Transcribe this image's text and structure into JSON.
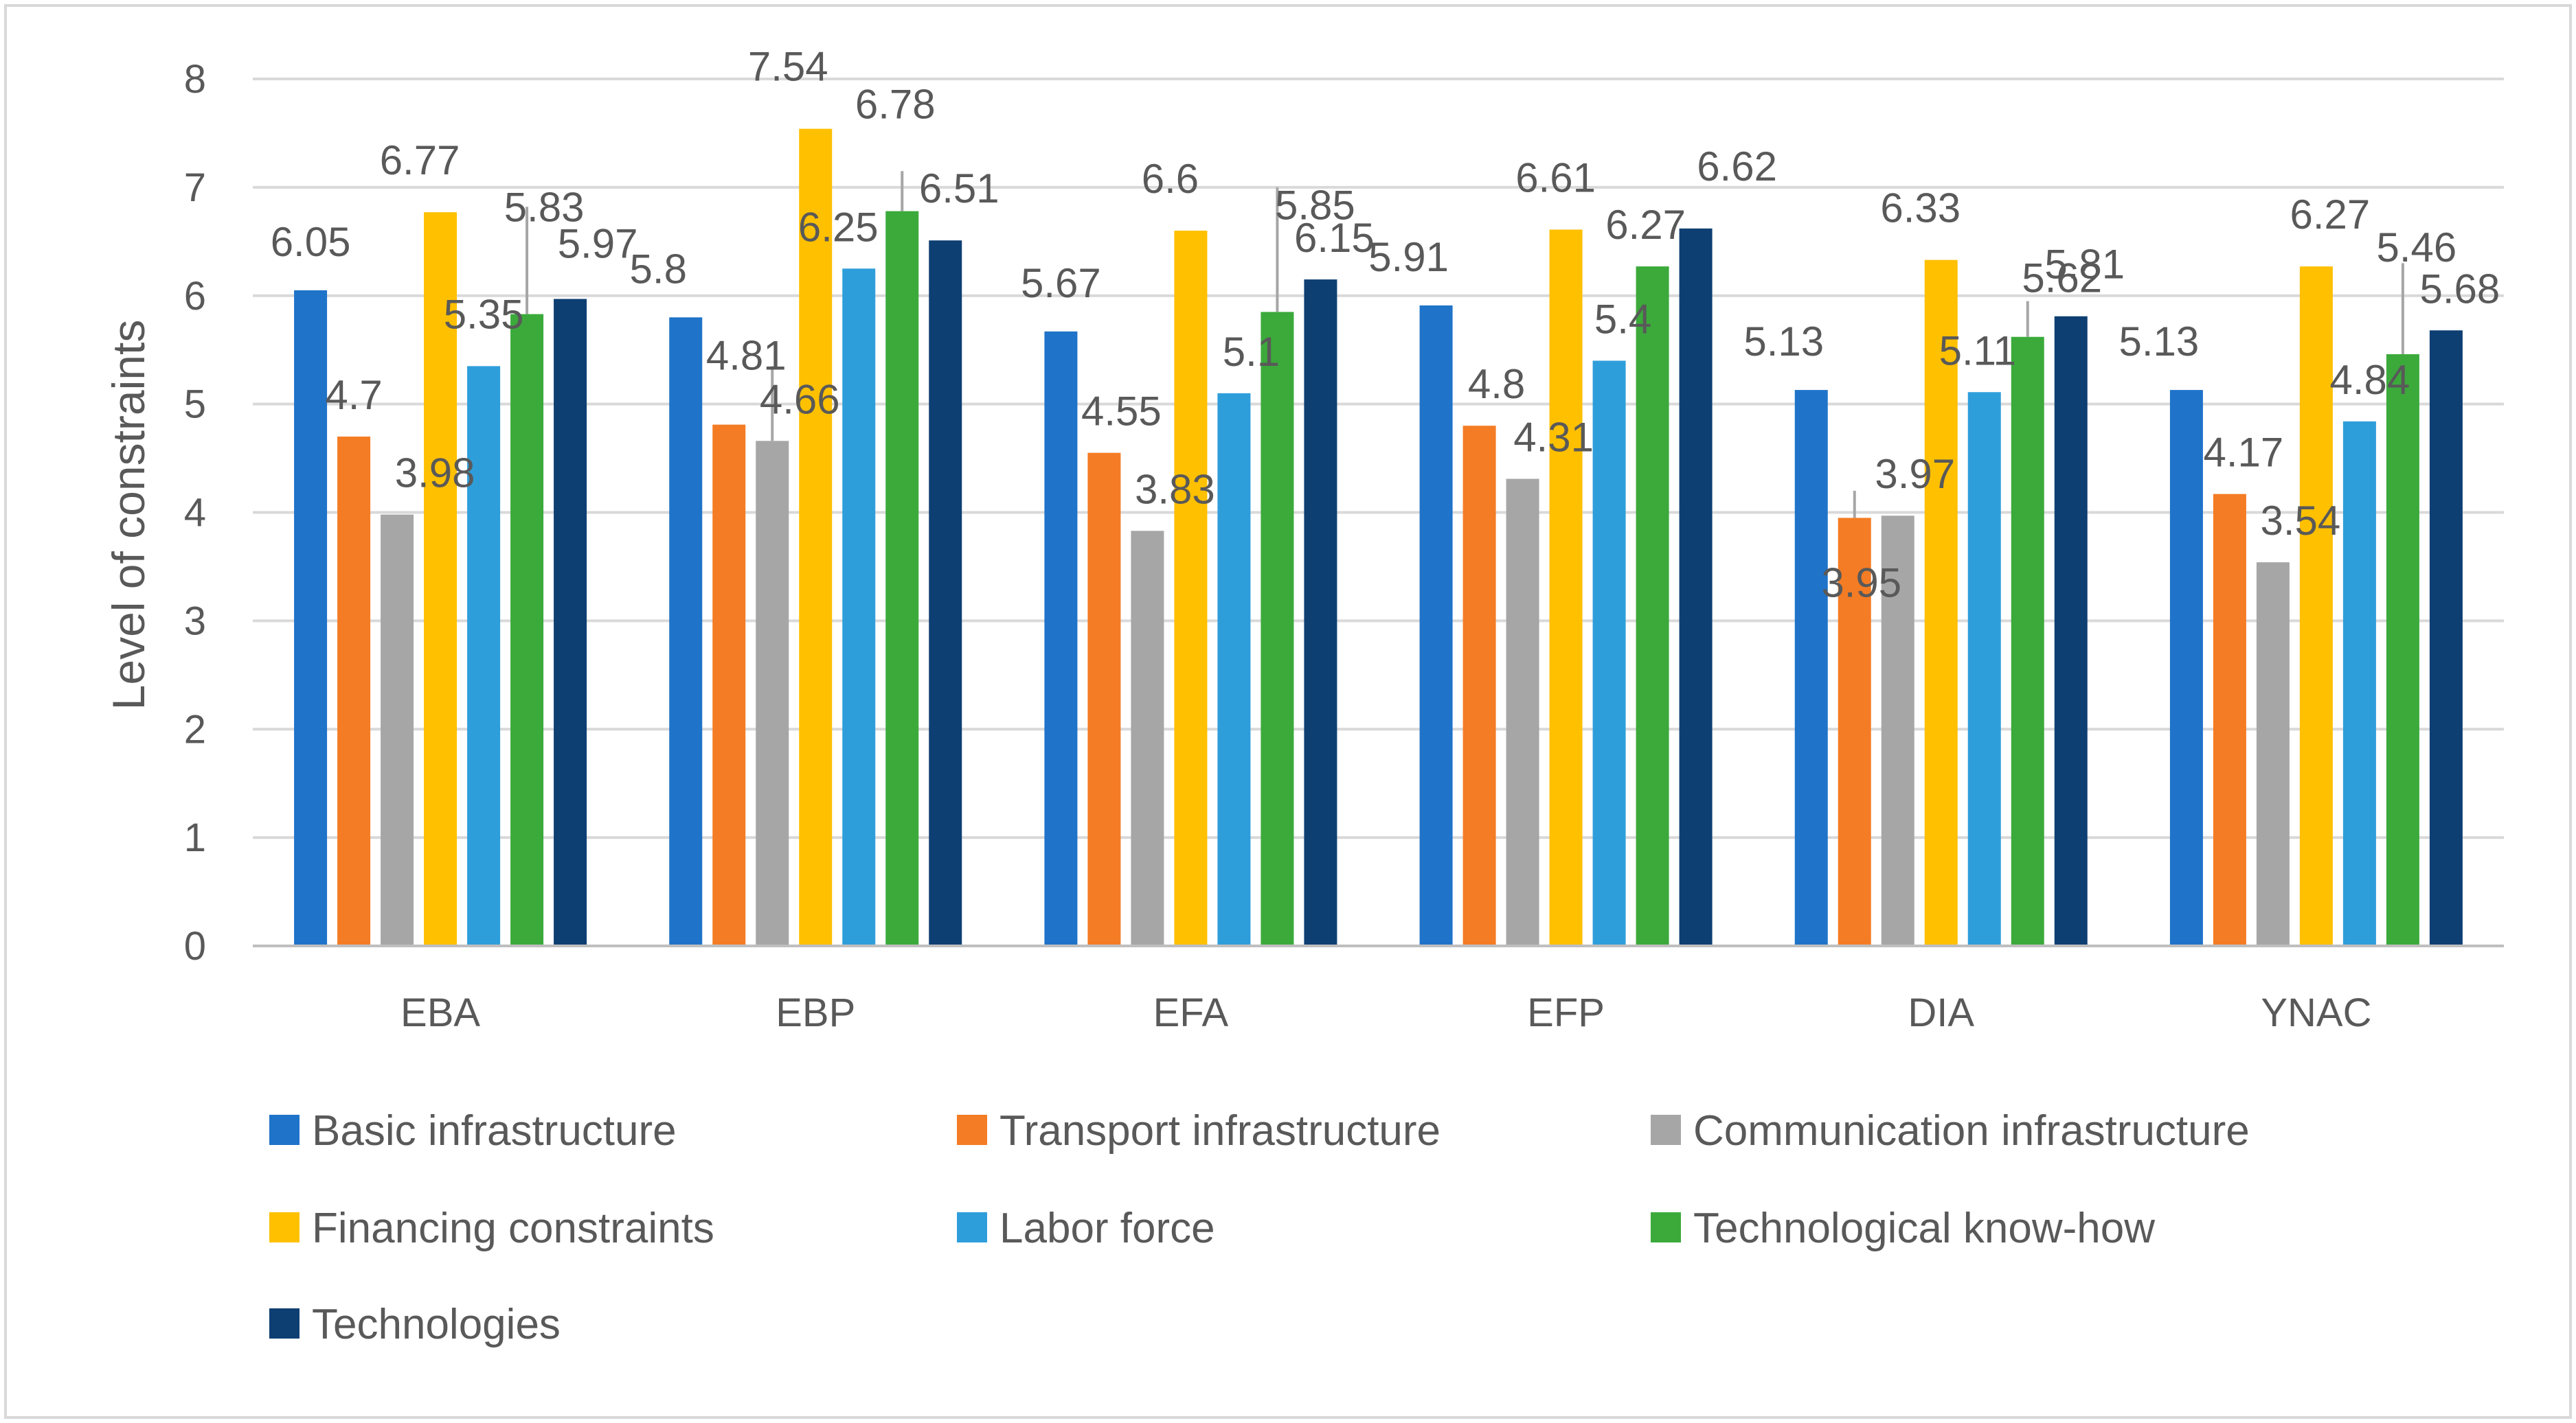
{
  "chart_data": {
    "type": "bar",
    "title": "",
    "xlabel": "",
    "ylabel": "Level of constraints",
    "ylim": [
      0,
      8
    ],
    "yticks": [
      0,
      1,
      2,
      3,
      4,
      5,
      6,
      7,
      8
    ],
    "grid": true,
    "legend_position": "bottom",
    "categories": [
      "EBA",
      "EBP",
      "EFA",
      "EFP",
      "DIA",
      "YNAC"
    ],
    "series": [
      {
        "name": "Basic infrastructure",
        "color": "#1F73C9",
        "values": [
          6.05,
          5.8,
          5.67,
          5.91,
          5.13,
          5.13
        ]
      },
      {
        "name": "Transport infrastructure",
        "color": "#F47C24",
        "values": [
          4.7,
          4.81,
          4.55,
          4.8,
          3.95,
          4.17
        ]
      },
      {
        "name": "Communication infrastructure",
        "color": "#A6A6A6",
        "values": [
          3.98,
          4.66,
          3.83,
          4.31,
          3.97,
          3.54
        ]
      },
      {
        "name": "Financing constraints",
        "color": "#FFC000",
        "values": [
          6.77,
          7.54,
          6.6,
          6.61,
          6.33,
          6.27
        ]
      },
      {
        "name": "Labor force",
        "color": "#2E9EDB",
        "values": [
          5.35,
          6.25,
          5.1,
          5.4,
          5.11,
          4.84
        ]
      },
      {
        "name": "Technological know-how",
        "color": "#3BAA3B",
        "values": [
          5.83,
          6.78,
          5.85,
          6.27,
          5.62,
          5.46
        ]
      },
      {
        "name": "Technologies",
        "color": "#0E3F73",
        "values": [
          5.97,
          6.51,
          6.15,
          6.62,
          5.81,
          5.68
        ]
      }
    ]
  }
}
